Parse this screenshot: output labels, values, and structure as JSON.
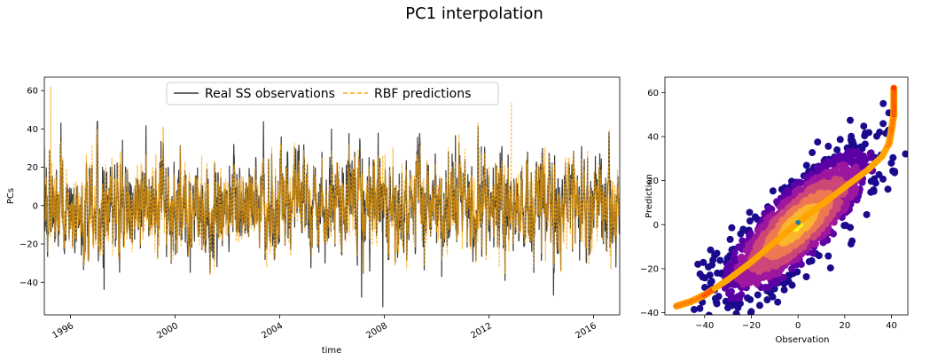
{
  "suptitle": "PC1 interpolation",
  "chart_data": [
    {
      "type": "line",
      "xlabel": "time",
      "ylabel": "PCs",
      "xlim": [
        "1995-01-01",
        "2017-01-01"
      ],
      "ylim": [
        -57,
        67
      ],
      "x_ticks": [
        "1996",
        "2000",
        "2004",
        "2008",
        "2012",
        "2016"
      ],
      "y_ticks": [
        -40,
        -20,
        0,
        20,
        40,
        60
      ],
      "legend_position": "upper center",
      "series": [
        {
          "name": "Real SS observations",
          "color": "#333333",
          "style": "solid",
          "approx_range": [
            -53,
            44
          ],
          "mean": 0,
          "std": 13
        },
        {
          "name": "RBF predictions",
          "color": "#FFA500",
          "style": "dashed",
          "approx_range": [
            -38,
            62
          ],
          "mean": 0,
          "std": 12
        }
      ]
    },
    {
      "type": "scatter",
      "xlabel": "Observation",
      "ylabel": "Prediction",
      "xlim": [
        -57,
        47
      ],
      "ylim": [
        -41,
        67
      ],
      "x_ticks": [
        -40,
        -20,
        0,
        20,
        40
      ],
      "y_ticks": [
        -40,
        -20,
        0,
        20,
        40,
        60
      ],
      "density_colormap": [
        "#1a0a8c",
        "#5c01a6",
        "#9c179e",
        "#cc4778",
        "#ed7953",
        "#fdb42f",
        "#f0f921"
      ],
      "fit_curve_color": "#FFA500",
      "outlier_color": "#ff3300",
      "center_point": [
        0,
        1
      ],
      "center_point_color": "#1f77b4",
      "fit_points": [
        [
          -52,
          -37
        ],
        [
          -46,
          -35
        ],
        [
          -40,
          -32
        ],
        [
          -30,
          -25
        ],
        [
          -20,
          -17
        ],
        [
          -10,
          -8
        ],
        [
          0,
          1
        ],
        [
          10,
          9
        ],
        [
          20,
          17
        ],
        [
          30,
          25
        ],
        [
          36,
          31
        ],
        [
          39,
          37
        ],
        [
          40,
          43
        ],
        [
          41,
          50
        ],
        [
          41,
          62
        ]
      ]
    }
  ]
}
